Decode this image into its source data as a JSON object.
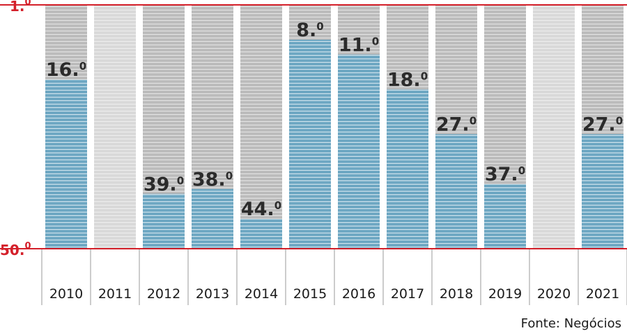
{
  "chart_data": {
    "type": "bar",
    "orientation": "inverted",
    "title": "",
    "xlabel": "",
    "ylabel": "",
    "ylim": [
      1,
      50
    ],
    "y_axis_labels": {
      "top": "1.0",
      "bottom": "50.0"
    },
    "categories": [
      "2010",
      "2011",
      "2012",
      "2013",
      "2014",
      "2015",
      "2016",
      "2017",
      "2018",
      "2019",
      "2020",
      "2021"
    ],
    "values": [
      16,
      null,
      39,
      38,
      44,
      8,
      11,
      18,
      27,
      37,
      null,
      27
    ],
    "value_labels": [
      "16.0",
      "",
      "39.0",
      "38.0",
      "44.0",
      "8.0",
      "11.0",
      "18.0",
      "27.0",
      "37.0",
      "",
      "27.0"
    ],
    "grid": false,
    "colors": {
      "bar": "#6fa8c3",
      "background_column": "#bdbdbd",
      "empty_column": "#d9d9d9",
      "axis_accent": "#d4202a"
    }
  },
  "source": "Fonte: Negócios"
}
